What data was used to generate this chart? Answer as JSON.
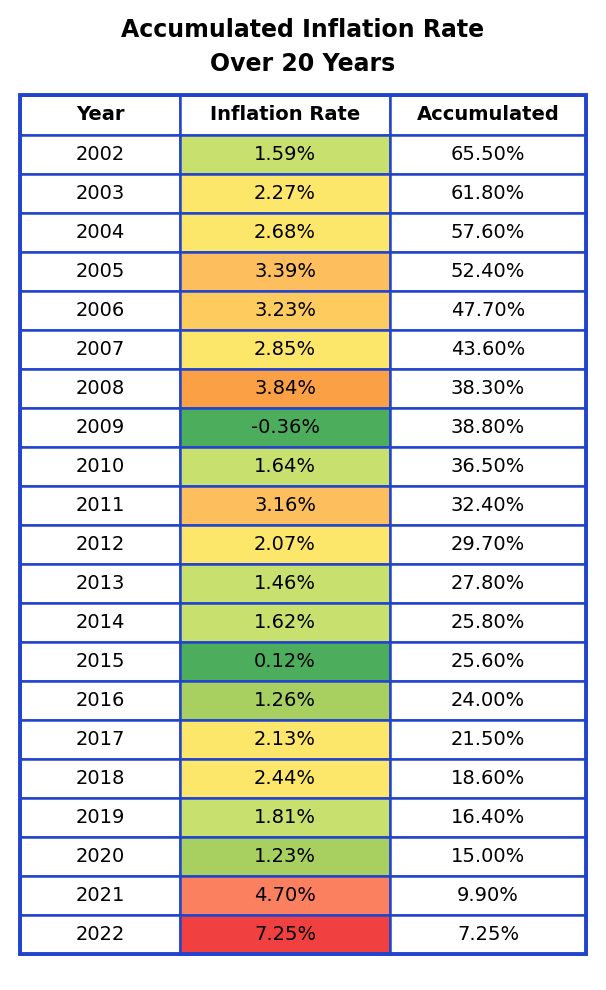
{
  "title_line1": "Accumulated Inflation Rate",
  "title_line2": "Over 20 Years",
  "headers": [
    "Year",
    "Inflation Rate",
    "Accumulated"
  ],
  "rows": [
    {
      "year": "2002",
      "inflation": "1.59%",
      "accumulated": "65.50%",
      "color": "#c8e06e"
    },
    {
      "year": "2003",
      "inflation": "2.27%",
      "accumulated": "61.80%",
      "color": "#fde76a"
    },
    {
      "year": "2004",
      "inflation": "2.68%",
      "accumulated": "57.60%",
      "color": "#fde76a"
    },
    {
      "year": "2005",
      "inflation": "3.39%",
      "accumulated": "52.40%",
      "color": "#fdbf5e"
    },
    {
      "year": "2006",
      "inflation": "3.23%",
      "accumulated": "47.70%",
      "color": "#fdcb5e"
    },
    {
      "year": "2007",
      "inflation": "2.85%",
      "accumulated": "43.60%",
      "color": "#fde76a"
    },
    {
      "year": "2008",
      "inflation": "3.84%",
      "accumulated": "38.30%",
      "color": "#fba044"
    },
    {
      "year": "2009",
      "inflation": "-0.36%",
      "accumulated": "38.80%",
      "color": "#4cae5c"
    },
    {
      "year": "2010",
      "inflation": "1.64%",
      "accumulated": "36.50%",
      "color": "#c8e06e"
    },
    {
      "year": "2011",
      "inflation": "3.16%",
      "accumulated": "32.40%",
      "color": "#fdbf5e"
    },
    {
      "year": "2012",
      "inflation": "2.07%",
      "accumulated": "29.70%",
      "color": "#fde76a"
    },
    {
      "year": "2013",
      "inflation": "1.46%",
      "accumulated": "27.80%",
      "color": "#c8e06e"
    },
    {
      "year": "2014",
      "inflation": "1.62%",
      "accumulated": "25.80%",
      "color": "#c8e06e"
    },
    {
      "year": "2015",
      "inflation": "0.12%",
      "accumulated": "25.60%",
      "color": "#4cae5c"
    },
    {
      "year": "2016",
      "inflation": "1.26%",
      "accumulated": "24.00%",
      "color": "#a8d060"
    },
    {
      "year": "2017",
      "inflation": "2.13%",
      "accumulated": "21.50%",
      "color": "#fde76a"
    },
    {
      "year": "2018",
      "inflation": "2.44%",
      "accumulated": "18.60%",
      "color": "#fde76a"
    },
    {
      "year": "2019",
      "inflation": "1.81%",
      "accumulated": "16.40%",
      "color": "#c8e06e"
    },
    {
      "year": "2020",
      "inflation": "1.23%",
      "accumulated": "15.00%",
      "color": "#a8d060"
    },
    {
      "year": "2021",
      "inflation": "4.70%",
      "accumulated": "9.90%",
      "color": "#fb8060"
    },
    {
      "year": "2022",
      "inflation": "7.25%",
      "accumulated": "7.25%",
      "color": "#f04040"
    }
  ],
  "border_color": "#2244cc",
  "title_fontsize": 17,
  "header_fontsize": 14,
  "cell_fontsize": 14,
  "fig_width": 6.06,
  "fig_height": 9.9,
  "dpi": 100
}
